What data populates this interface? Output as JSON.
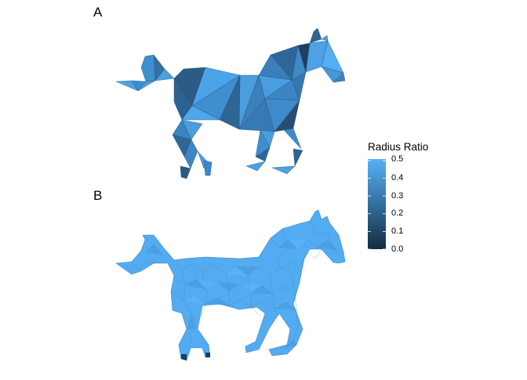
{
  "panels": [
    {
      "label": "A",
      "description_key": "coarse-mesh"
    },
    {
      "label": "B",
      "description_key": "fine-mesh"
    }
  ],
  "legend": {
    "title": "Radius Ratio",
    "ticks": [
      "0.5",
      "0.4",
      "0.3",
      "0.2",
      "0.1",
      "0.0"
    ],
    "min": 0.0,
    "max": 0.5,
    "color_low": "#132B43",
    "color_high": "#56B1F7"
  }
}
